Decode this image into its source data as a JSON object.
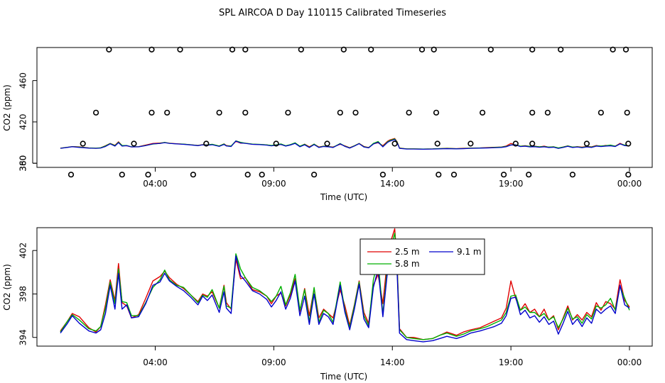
{
  "chart_data": [
    {
      "type": "scatter",
      "title": "SPL  AIRCOA D  Day 110115  Calibrated Timeseries",
      "xlabel": "Time (UTC)",
      "ylabel": "CO2 (ppm)",
      "xlim_hours": [
        0,
        24
      ],
      "ylim": [
        376,
        492
      ],
      "x_ticks": [
        {
          "hour": 4,
          "label": "04:00"
        },
        {
          "hour": 9,
          "label": "09:00"
        },
        {
          "hour": 14,
          "label": "14:00"
        },
        {
          "hour": 19,
          "label": "19:00"
        },
        {
          "hour": 24,
          "label": "00:00"
        }
      ],
      "y_ticks": [
        360,
        380,
        420,
        460
      ],
      "calibration_points": [
        {
          "x": 0.45,
          "y": 369
        },
        {
          "x": 0.95,
          "y": 399
        },
        {
          "x": 1.5,
          "y": 429
        },
        {
          "x": 2.05,
          "y": 490
        },
        {
          "x": 2.6,
          "y": 369
        },
        {
          "x": 3.1,
          "y": 399
        },
        {
          "x": 3.7,
          "y": 369
        },
        {
          "x": 3.85,
          "y": 429
        },
        {
          "x": 3.85,
          "y": 490
        },
        {
          "x": 4.5,
          "y": 429
        },
        {
          "x": 5.05,
          "y": 490
        },
        {
          "x": 5.6,
          "y": 369
        },
        {
          "x": 6.15,
          "y": 399
        },
        {
          "x": 6.7,
          "y": 429
        },
        {
          "x": 7.25,
          "y": 490
        },
        {
          "x": 7.8,
          "y": 490
        },
        {
          "x": 7.8,
          "y": 429
        },
        {
          "x": 7.9,
          "y": 369
        },
        {
          "x": 8.5,
          "y": 369
        },
        {
          "x": 9.1,
          "y": 399
        },
        {
          "x": 9.6,
          "y": 429
        },
        {
          "x": 10.15,
          "y": 490
        },
        {
          "x": 10.7,
          "y": 369
        },
        {
          "x": 11.25,
          "y": 399
        },
        {
          "x": 11.8,
          "y": 429
        },
        {
          "x": 11.95,
          "y": 490
        },
        {
          "x": 12.45,
          "y": 429
        },
        {
          "x": 13.1,
          "y": 490
        },
        {
          "x": 13.6,
          "y": 369
        },
        {
          "x": 14.1,
          "y": 399
        },
        {
          "x": 14.7,
          "y": 429
        },
        {
          "x": 15.25,
          "y": 490
        },
        {
          "x": 15.75,
          "y": 490
        },
        {
          "x": 15.85,
          "y": 429
        },
        {
          "x": 15.9,
          "y": 399
        },
        {
          "x": 15.95,
          "y": 369
        },
        {
          "x": 16.6,
          "y": 369
        },
        {
          "x": 17.3,
          "y": 399
        },
        {
          "x": 17.8,
          "y": 429
        },
        {
          "x": 18.15,
          "y": 490
        },
        {
          "x": 18.7,
          "y": 369
        },
        {
          "x": 19.2,
          "y": 399
        },
        {
          "x": 19.75,
          "y": 369
        },
        {
          "x": 19.9,
          "y": 399
        },
        {
          "x": 19.9,
          "y": 429
        },
        {
          "x": 19.9,
          "y": 490
        },
        {
          "x": 20.55,
          "y": 429
        },
        {
          "x": 21.1,
          "y": 490
        },
        {
          "x": 21.6,
          "y": 369
        },
        {
          "x": 22.2,
          "y": 399
        },
        {
          "x": 22.8,
          "y": 429
        },
        {
          "x": 23.3,
          "y": 490
        },
        {
          "x": 23.85,
          "y": 490
        },
        {
          "x": 23.9,
          "y": 429
        },
        {
          "x": 23.95,
          "y": 399
        },
        {
          "x": 23.95,
          "y": 369
        }
      ]
    },
    {
      "type": "line",
      "xlabel": "Time (UTC)",
      "ylabel": "CO2 (ppm)",
      "xlim_hours": [
        0,
        24
      ],
      "ylim": [
        393.2,
        404.1
      ],
      "x_ticks": [
        {
          "hour": 4,
          "label": "04:00"
        },
        {
          "hour": 9,
          "label": "09:00"
        },
        {
          "hour": 14,
          "label": "14:00"
        },
        {
          "hour": 19,
          "label": "19:00"
        },
        {
          "hour": 24,
          "label": "00:00"
        }
      ],
      "y_ticks": [
        394,
        398,
        402
      ],
      "x": [
        0,
        0.3,
        0.5,
        0.8,
        1.2,
        1.5,
        1.7,
        1.9,
        2.1,
        2.3,
        2.45,
        2.6,
        2.8,
        3.0,
        3.3,
        3.6,
        3.9,
        4.2,
        4.4,
        4.6,
        4.9,
        5.2,
        5.5,
        5.8,
        6.0,
        6.2,
        6.4,
        6.7,
        6.9,
        7.0,
        7.2,
        7.4,
        7.6,
        7.8,
        8.1,
        8.4,
        8.7,
        8.9,
        9.1,
        9.3,
        9.5,
        9.7,
        9.9,
        10.1,
        10.3,
        10.5,
        10.7,
        10.9,
        11.1,
        11.3,
        11.5,
        11.8,
        12.0,
        12.2,
        12.4,
        12.6,
        12.8,
        13.0,
        13.2,
        13.4,
        13.6,
        13.8,
        13.9,
        14.1,
        14.2,
        14.3,
        14.6,
        14.9,
        15.3,
        15.7,
        16.0,
        16.3,
        16.7,
        17.0,
        17.3,
        17.7,
        18.0,
        18.3,
        18.6,
        18.8,
        19.0,
        19.2,
        19.4,
        19.6,
        19.8,
        20.0,
        20.2,
        20.4,
        20.6,
        20.8,
        21.0,
        21.2,
        21.4,
        21.6,
        21.8,
        22.0,
        22.2,
        22.4,
        22.6,
        22.8,
        23.0,
        23.2,
        23.4,
        23.6,
        23.8,
        24.0
      ],
      "series": [
        {
          "name": "2.5 m",
          "color": "#e00000",
          "values": [
            394.6,
            395.5,
            396.2,
            395.9,
            394.9,
            394.5,
            395.0,
            397.0,
            399.3,
            397.4,
            400.8,
            397.2,
            396.9,
            395.8,
            396.1,
            397.6,
            399.2,
            399.6,
            400.1,
            399.5,
            398.9,
            398.5,
            397.9,
            397.3,
            398.0,
            397.8,
            398.2,
            396.7,
            398.8,
            397.2,
            396.6,
            401.2,
            399.4,
            399.5,
            398.4,
            398.2,
            397.8,
            397.1,
            397.8,
            398.1,
            396.9,
            397.9,
            399.4,
            396.4,
            398.5,
            396.0,
            398.5,
            395.8,
            396.6,
            396.2,
            395.8,
            398.4,
            396.9,
            395.1,
            397.0,
            399.2,
            396.3,
            395.3,
            398.8,
            399.8,
            397.1,
            401.4,
            402.6,
            404.0,
            400.9,
            394.8,
            394.0,
            394.0,
            393.8,
            393.9,
            394.2,
            394.5,
            394.2,
            394.5,
            394.7,
            394.9,
            395.2,
            395.5,
            395.8,
            396.7,
            399.2,
            397.6,
            396.5,
            397.1,
            396.3,
            396.6,
            395.9,
            396.6,
            395.6,
            396.0,
            394.7,
            395.8,
            396.9,
            395.6,
            396.1,
            395.6,
            396.3,
            395.9,
            397.2,
            396.5,
            397.3,
            397.1,
            396.6,
            399.3,
            397.4,
            396.8
          ]
        },
        {
          "name": "5.8 m",
          "color": "#00b000",
          "values": [
            394.5,
            395.5,
            396.1,
            395.6,
            394.8,
            394.6,
            395.0,
            396.7,
            399.1,
            397.1,
            400.3,
            397.3,
            397.2,
            396.0,
            396.0,
            397.2,
            398.6,
            399.3,
            400.2,
            399.3,
            398.8,
            398.6,
            397.9,
            397.2,
            397.9,
            397.7,
            398.4,
            396.7,
            398.7,
            396.9,
            396.7,
            401.7,
            400.3,
            399.5,
            398.6,
            398.3,
            397.8,
            397.3,
            397.8,
            398.7,
            397.0,
            398.1,
            399.8,
            396.5,
            398.4,
            395.4,
            398.6,
            395.4,
            396.5,
            396.2,
            395.4,
            399.1,
            396.5,
            394.9,
            396.9,
            399.1,
            396.0,
            395.1,
            399.3,
            401.1,
            396.1,
            400.8,
            402.0,
            403.6,
            400.6,
            394.7,
            394.0,
            393.9,
            393.8,
            393.9,
            394.2,
            394.4,
            394.1,
            394.3,
            394.6,
            394.8,
            395.0,
            395.3,
            395.6,
            396.3,
            397.8,
            397.9,
            396.5,
            396.8,
            396.3,
            396.3,
            395.9,
            396.2,
            395.6,
            395.9,
            394.9,
            395.7,
            396.7,
            395.7,
            395.9,
            395.3,
            396.1,
            395.7,
            396.9,
            396.7,
            397.0,
            397.6,
            396.5,
            398.7,
            397.6,
            396.5
          ]
        },
        {
          "name": "9.1 m",
          "color": "#0000cc",
          "values": [
            394.4,
            395.3,
            396.0,
            395.3,
            394.6,
            394.4,
            394.7,
            396.2,
            398.8,
            396.6,
            399.9,
            396.6,
            397.0,
            395.8,
            395.9,
            397.1,
            398.8,
            399.1,
            399.9,
            399.2,
            398.7,
            398.3,
            397.7,
            397.0,
            397.8,
            397.4,
            397.9,
            396.3,
            398.2,
            396.7,
            396.2,
            401.5,
            399.7,
            399.2,
            398.3,
            398.0,
            397.5,
            396.8,
            397.4,
            398.2,
            396.6,
            397.6,
            399.2,
            396.0,
            397.8,
            395.2,
            398.0,
            395.2,
            396.2,
            395.9,
            395.2,
            398.8,
            396.3,
            394.7,
            396.6,
            398.9,
            395.7,
            394.9,
            398.6,
            400.3,
            395.9,
            400.2,
            401.4,
            403.0,
            400.1,
            394.4,
            393.8,
            393.7,
            393.6,
            393.7,
            393.9,
            394.1,
            393.9,
            394.1,
            394.4,
            394.6,
            394.8,
            395.0,
            395.3,
            396.0,
            397.6,
            397.7,
            396.1,
            396.5,
            395.8,
            396.0,
            395.4,
            395.9,
            395.2,
            395.5,
            394.3,
            395.3,
            396.4,
            395.2,
            395.7,
            395.0,
            395.8,
            395.3,
            396.6,
            396.2,
            396.6,
            396.9,
            396.2,
            398.8,
            397.0,
            396.7
          ]
        }
      ],
      "legend": {
        "position": "top-center",
        "entries": [
          "2.5 m",
          "9.1 m",
          "5.8 m"
        ]
      }
    }
  ]
}
